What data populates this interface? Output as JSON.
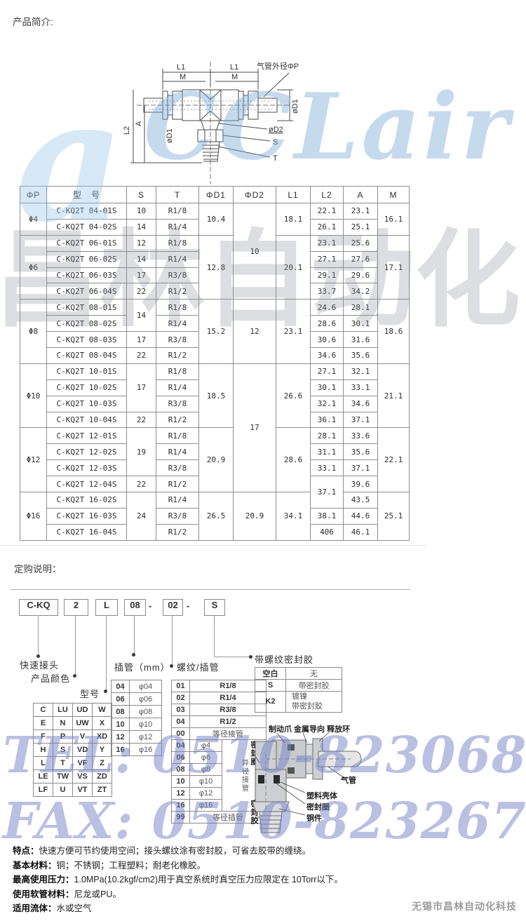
{
  "page": {
    "intro_heading": "产品简介:",
    "order_heading": "定购说明：",
    "company": "无锡市昌林自动化科技"
  },
  "watermark": {
    "swirl": "a",
    "logo": "CCLair",
    "cn": "昌林自动化",
    "tel": "TEL: 0510-82306871",
    "fax": "FAX: 0510-82326771"
  },
  "diagram1": {
    "labels": {
      "l1": "L1",
      "m": "M",
      "tube_od": "气管外径ΦP",
      "d1": "øD1",
      "d2": "øD2",
      "l2": "L2",
      "a": "A",
      "s": "S",
      "t": "T"
    }
  },
  "spec_table": {
    "headers": [
      "ΦP",
      "型　号",
      "S",
      "T",
      "ΦD1",
      "ΦD2",
      "L1",
      "L2",
      "A",
      "M"
    ],
    "rows": [
      [
        {
          "t": "Φ4",
          "rs": 2
        },
        {
          "t": "C-KQ2T 04-01S"
        },
        {
          "t": "10"
        },
        {
          "t": "R1/8"
        },
        {
          "t": "10.4",
          "rs": 2
        },
        {
          "t": "10",
          "rs": 6
        },
        {
          "t": "18.1",
          "rs": 2
        },
        {
          "t": "22.1"
        },
        {
          "t": "23.1"
        },
        {
          "t": "16.1",
          "rs": 2
        }
      ],
      [
        {
          "t": "C-KQ2T 04-02S"
        },
        {
          "t": "14"
        },
        {
          "t": "R1/4"
        },
        {
          "t": "26.1"
        },
        {
          "t": "25.1"
        }
      ],
      [
        {
          "t": "Φ6",
          "rs": 4
        },
        {
          "t": "C-KQ2T 06-01S"
        },
        {
          "t": "12"
        },
        {
          "t": "R1/8"
        },
        {
          "t": "12.8",
          "rs": 4
        },
        {
          "t": "20.1",
          "rs": 4
        },
        {
          "t": "23.1"
        },
        {
          "t": "25.6"
        },
        {
          "t": "17.1",
          "rs": 4
        }
      ],
      [
        {
          "t": "C-KQ2T 06-02S"
        },
        {
          "t": "14"
        },
        {
          "t": "R1/4"
        },
        {
          "t": "27.1"
        },
        {
          "t": "27.6"
        }
      ],
      [
        {
          "t": "C-KQ2T 06-03S"
        },
        {
          "t": "17"
        },
        {
          "t": "R3/8"
        },
        {
          "t": "29.1"
        },
        {
          "t": "29.6"
        }
      ],
      [
        {
          "t": "C-KQ2T 06-04S"
        },
        {
          "t": "22"
        },
        {
          "t": "R1/2"
        },
        {
          "t": "33.7"
        },
        {
          "t": "34.2"
        }
      ],
      [
        {
          "t": "Φ8",
          "rs": 4
        },
        {
          "t": "C-KQ2T 08-01S"
        },
        {
          "t": "14",
          "rs": 2
        },
        {
          "t": "R1/8"
        },
        {
          "t": "15.2",
          "rs": 4
        },
        {
          "t": "12",
          "rs": 4
        },
        {
          "t": "23.1",
          "rs": 4
        },
        {
          "t": "24.6"
        },
        {
          "t": "28.1"
        },
        {
          "t": "18.6",
          "rs": 4
        }
      ],
      [
        {
          "t": "C-KQ2T 08-02S"
        },
        {
          "t": "R1/4"
        },
        {
          "t": "28.6"
        },
        {
          "t": "30.1"
        }
      ],
      [
        {
          "t": "C-KQ2T 08-03S"
        },
        {
          "t": "17"
        },
        {
          "t": "R3/8"
        },
        {
          "t": "30.6"
        },
        {
          "t": "31.6"
        }
      ],
      [
        {
          "t": "C-KQ2T 08-04S"
        },
        {
          "t": "22"
        },
        {
          "t": "R1/2"
        },
        {
          "t": "34.6"
        },
        {
          "t": "35.6"
        }
      ],
      [
        {
          "t": "Φ10",
          "rs": 4
        },
        {
          "t": "C-KQ2T 10-01S"
        },
        {
          "t": "17",
          "rs": 3
        },
        {
          "t": "R1/8"
        },
        {
          "t": "18.5",
          "rs": 4
        },
        {
          "t": "17",
          "rs": 8
        },
        {
          "t": "26.6",
          "rs": 4
        },
        {
          "t": "27.1"
        },
        {
          "t": "32.1"
        },
        {
          "t": "21.1",
          "rs": 4
        }
      ],
      [
        {
          "t": "C-KQ2T 10-02S"
        },
        {
          "t": "R1/4"
        },
        {
          "t": "30.1"
        },
        {
          "t": "33.1"
        }
      ],
      [
        {
          "t": "C-KQ2T 10-03S"
        },
        {
          "t": "R3/8"
        },
        {
          "t": "32.1"
        },
        {
          "t": "34.6"
        }
      ],
      [
        {
          "t": "C-KQ2T 10-04S"
        },
        {
          "t": "22"
        },
        {
          "t": "R1/2"
        },
        {
          "t": "36.1"
        },
        {
          "t": "37.1"
        }
      ],
      [
        {
          "t": "Φ12",
          "rs": 4
        },
        {
          "t": "C-KQ2T 12-01S"
        },
        {
          "t": "19",
          "rs": 3
        },
        {
          "t": "R1/8"
        },
        {
          "t": "20.9",
          "rs": 4
        },
        {
          "t": "28.6",
          "rs": 4
        },
        {
          "t": "28.1"
        },
        {
          "t": "33.6"
        },
        {
          "t": "22.1",
          "rs": 4
        }
      ],
      [
        {
          "t": "C-KQ2T 12-02S"
        },
        {
          "t": "R1/4"
        },
        {
          "t": "31.1"
        },
        {
          "t": "35.6"
        }
      ],
      [
        {
          "t": "C-KQ2T 12-03S"
        },
        {
          "t": "R3/8"
        },
        {
          "t": "33.1"
        },
        {
          "t": "37.1"
        }
      ],
      [
        {
          "t": "C-KQ2T 12-04S"
        },
        {
          "t": "22"
        },
        {
          "t": "R1/2"
        },
        {
          "t": "37.1",
          "rs": 2
        },
        {
          "t": "39.6"
        }
      ],
      [
        {
          "t": "Φ16",
          "rs": 3
        },
        {
          "t": "C-KQ2T 16-02S"
        },
        {
          "t": "24",
          "rs": 3
        },
        {
          "t": "R1/4"
        },
        {
          "t": "26.5",
          "rs": 3
        },
        {
          "t": "20.9",
          "rs": 3
        },
        {
          "t": "34.1",
          "rs": 3
        },
        {
          "t": "43.5"
        },
        {
          "t": "25.1",
          "rs": 3
        }
      ],
      [
        {
          "t": "C-KQ2T 16-03S"
        },
        {
          "t": "R3/8"
        },
        {
          "t": "38.1"
        },
        {
          "t": "44.6"
        }
      ],
      [
        {
          "t": "C-KQ2T 16-04S"
        },
        {
          "t": "R1/2"
        },
        {
          "t": "406"
        },
        {
          "t": "46.1"
        }
      ]
    ]
  },
  "ordering": {
    "code": [
      "C-KQ",
      "2",
      "L",
      "08",
      "02",
      "S"
    ],
    "sep": "-",
    "labels": {
      "quick": "快速接头",
      "color": "产品颜色",
      "model": "型号",
      "tube": "插管（mm）",
      "thread": "螺纹/插管",
      "seal": "带螺纹密封胶"
    },
    "model_table": [
      [
        {
          "t": "C"
        },
        {
          "t": "LU"
        },
        {
          "t": "UD"
        },
        {
          "t": "W"
        }
      ],
      [
        {
          "t": "E"
        },
        {
          "t": "N"
        },
        {
          "t": "UW"
        },
        {
          "t": "X"
        }
      ],
      [
        {
          "t": "F"
        },
        {
          "t": "P"
        },
        {
          "t": "V"
        },
        {
          "t": "XD"
        }
      ],
      [
        {
          "t": "H"
        },
        {
          "t": "S"
        },
        {
          "t": "VD"
        },
        {
          "t": "Y"
        }
      ],
      [
        {
          "t": "L"
        },
        {
          "t": "T"
        },
        {
          "t": "VF"
        },
        {
          "t": "Z"
        }
      ],
      [
        {
          "t": "LE"
        },
        {
          "t": "TW"
        },
        {
          "t": "VS"
        },
        {
          "t": "ZD"
        }
      ],
      [
        {
          "t": "LF"
        },
        {
          "t": "U"
        },
        {
          "t": "VT"
        },
        {
          "t": "ZT"
        }
      ]
    ],
    "tube_table": [
      [
        {
          "t": "04"
        },
        {
          "t": "φ04",
          "cls": "lite"
        }
      ],
      [
        {
          "t": "06"
        },
        {
          "t": "φ06",
          "cls": "lite"
        }
      ],
      [
        {
          "t": "08"
        },
        {
          "t": "φ08",
          "cls": "lite"
        }
      ],
      [
        {
          "t": "10"
        },
        {
          "t": "φ10",
          "cls": "lite"
        }
      ],
      [
        {
          "t": "12"
        },
        {
          "t": "φ12",
          "cls": "lite"
        }
      ],
      [
        {
          "t": "16"
        },
        {
          "t": "φ16",
          "cls": "lite"
        }
      ]
    ],
    "thread_table": [
      [
        {
          "t": "01"
        },
        {
          "t": "R1/8",
          "cs": 2
        }
      ],
      [
        {
          "t": "02"
        },
        {
          "t": "R1/4",
          "cs": 2
        }
      ],
      [
        {
          "t": "03"
        },
        {
          "t": "R3/8",
          "cs": 2
        }
      ],
      [
        {
          "t": "04"
        },
        {
          "t": "R1/2",
          "cs": 2
        }
      ],
      [
        {
          "t": "00"
        },
        {
          "t": "等径接管",
          "cs": 2,
          "cls": "lite"
        }
      ],
      [
        {
          "t": "04"
        },
        {
          "t": "φ4",
          "cls": "lite"
        },
        {
          "t": "异径接管",
          "rs": 6,
          "cls": "vert lite"
        }
      ],
      [
        {
          "t": "06"
        },
        {
          "t": "φ6",
          "cls": "lite"
        }
      ],
      [
        {
          "t": "08"
        },
        {
          "t": "φ8",
          "cls": "lite"
        }
      ],
      [
        {
          "t": "10"
        },
        {
          "t": "φ10",
          "cls": "lite"
        }
      ],
      [
        {
          "t": "12"
        },
        {
          "t": "φ12",
          "cls": "lite"
        }
      ],
      [
        {
          "t": "16"
        },
        {
          "t": "φ16",
          "cls": "lite"
        }
      ],
      [
        {
          "t": "99"
        },
        {
          "t": "等径插管",
          "cs": 2,
          "cls": "lite"
        }
      ]
    ],
    "seal_table": [
      [
        {
          "t": "空白"
        },
        {
          "t": "无",
          "cls": "lite"
        }
      ],
      [
        {
          "t": "S"
        },
        {
          "t": "带密封胶",
          "cls": "lite"
        }
      ],
      [
        {
          "t": "K2"
        },
        {
          "t": "镀镍\n带密封胶",
          "cls": "lite pre"
        }
      ]
    ]
  },
  "diagram2": {
    "top_labels": "制动爪 金属导向 释放环",
    "seal_ring_left": "密封圈",
    "sealant_left": "密封胶",
    "tube": "气管",
    "plastic_body": "塑料壳体",
    "seal_ring": "密封圈",
    "copper": "铜件"
  },
  "features": [
    {
      "label": "特点：",
      "text": "快速方便可节约使用空间；接头螺纹涂有密封胶，可省去胶带的缠绕。"
    },
    {
      "label": "基本材料：",
      "text": "铜；不锈钢；工程塑料；耐老化橡胶。"
    },
    {
      "label": "最高使用压力：",
      "text": "1.0MPa(10.2kgf/cm2)用于真空系统时真空压力应限定在 10Torr以下。"
    },
    {
      "label": "使用软管材料：",
      "text": "尼龙或PU。"
    },
    {
      "label": "适用流体：",
      "text": "水或空气"
    }
  ]
}
